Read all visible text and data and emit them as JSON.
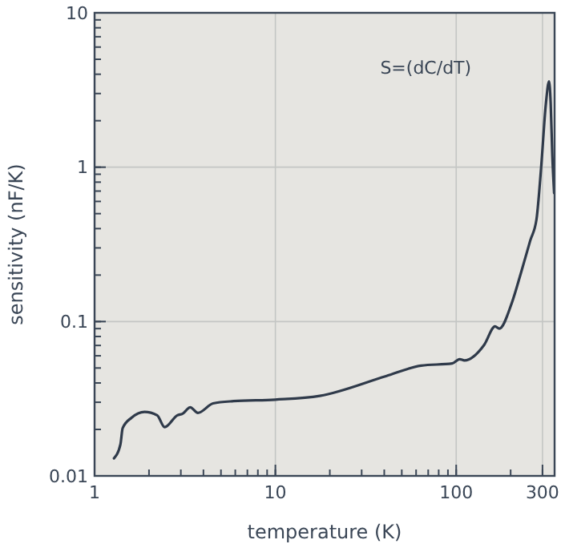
{
  "chart_data": {
    "type": "line",
    "xlabel": "temperature (K)",
    "ylabel": "sensitivity (nF/K)",
    "annotations": [
      "S=(dC/dT)"
    ],
    "log": "xy",
    "grid": true,
    "xlim": [
      1,
      350
    ],
    "ylim": [
      0.01,
      10
    ],
    "xticks": [
      1,
      10,
      100,
      300
    ],
    "yticks": [
      0.01,
      0.1,
      1,
      10
    ],
    "series": [
      {
        "color": "#2f3a4a",
        "x": [
          1.28,
          1.39,
          1.43,
          1.6,
          1.89,
          2.22,
          2.44,
          2.87,
          3.07,
          3.38,
          3.73,
          4.52,
          5.87,
          10,
          17.6,
          40.9,
          64,
          95,
          104.5,
          111,
          143,
          164,
          173,
          203,
          229,
          257,
          278,
          295,
          313,
          326,
          333,
          340,
          348
        ],
        "values": [
          0.013,
          0.016,
          0.0204,
          0.0238,
          0.026,
          0.0247,
          0.0207,
          0.0247,
          0.0253,
          0.0278,
          0.0256,
          0.0295,
          0.0305,
          0.0312,
          0.033,
          0.0443,
          0.0518,
          0.0535,
          0.057,
          0.056,
          0.0708,
          0.093,
          0.09,
          0.132,
          0.21,
          0.336,
          0.46,
          1.0,
          2.55,
          3.6,
          2.6,
          1.2,
          0.68
        ]
      }
    ]
  }
}
